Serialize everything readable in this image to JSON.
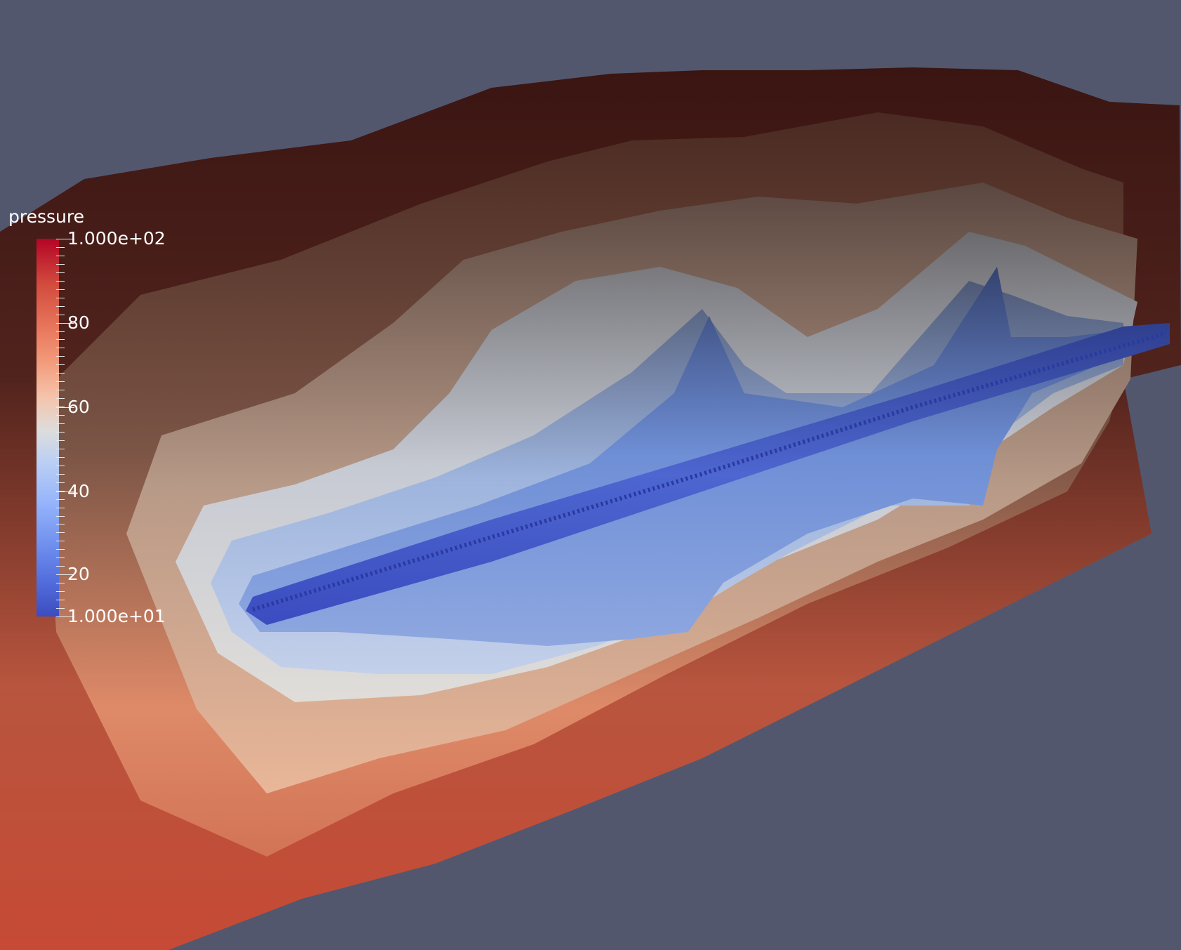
{
  "legend": {
    "title": "pressure",
    "max_label": "1.000e+02",
    "min_label": "1.000e+01",
    "tick_labels": [
      "80",
      "60",
      "40",
      "20"
    ],
    "range": [
      10,
      100
    ],
    "colormap": "cool-to-warm",
    "colors": {
      "high": "#b40426",
      "mid": "#dcdddd",
      "low": "#3b4cc0"
    }
  },
  "scene": {
    "background_color": "#52576d",
    "description": "nested pressure isosurfaces"
  }
}
